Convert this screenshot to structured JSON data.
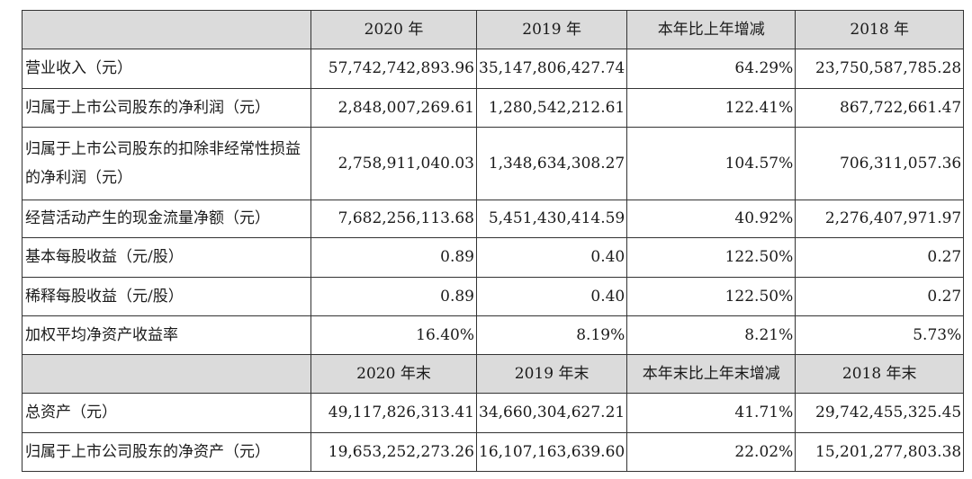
{
  "header1": [
    "",
    "2020 年",
    "2019 年",
    "本年比上年增减",
    "2018 年"
  ],
  "rows1": [
    {
      "label": "营业收入（元）",
      "v2020": "57,742,742,893.96",
      "v2019": "35,147,806,427.74",
      "change": "64.29%",
      "v2018": "23,750,587,785.28"
    },
    {
      "label": "归属于上市公司股东的净利润（元）",
      "v2020": "2,848,007,269.61",
      "v2019": "1,280,542,212.61",
      "change": "122.41%",
      "v2018": "867,722,661.47"
    },
    {
      "label": "归属于上市公司股东的扣除非经常性损益的净利润（元）",
      "v2020": "2,758,911,040.03",
      "v2019": "1,348,634,308.27",
      "change": "104.57%",
      "v2018": "706,311,057.36"
    },
    {
      "label": "经营活动产生的现金流量净额（元）",
      "v2020": "7,682,256,113.68",
      "v2019": "5,451,430,414.59",
      "change": "40.92%",
      "v2018": "2,276,407,971.97"
    },
    {
      "label": "基本每股收益（元/股）",
      "v2020": "0.89",
      "v2019": "0.40",
      "change": "122.50%",
      "v2018": "0.27"
    },
    {
      "label": "稀释每股收益（元/股）",
      "v2020": "0.89",
      "v2019": "0.40",
      "change": "122.50%",
      "v2018": "0.27"
    },
    {
      "label": "加权平均净资产收益率",
      "v2020": "16.40%",
      "v2019": "8.19%",
      "change": "8.21%",
      "v2018": "5.73%"
    }
  ],
  "header2": [
    "",
    "2020 年末",
    "2019 年末",
    "本年末比上年末增减",
    "2018 年末"
  ],
  "rows2": [
    {
      "label": "总资产（元）",
      "v2020": "49,117,826,313.41",
      "v2019": "34,660,304,627.21",
      "change": "41.71%",
      "v2018": "29,742,455,325.45"
    },
    {
      "label": "归属于上市公司股东的净资产（元）",
      "v2020": "19,653,252,273.26",
      "v2019": "16,107,163,639.60",
      "change": "22.02%",
      "v2018": "15,201,277,803.38"
    }
  ]
}
